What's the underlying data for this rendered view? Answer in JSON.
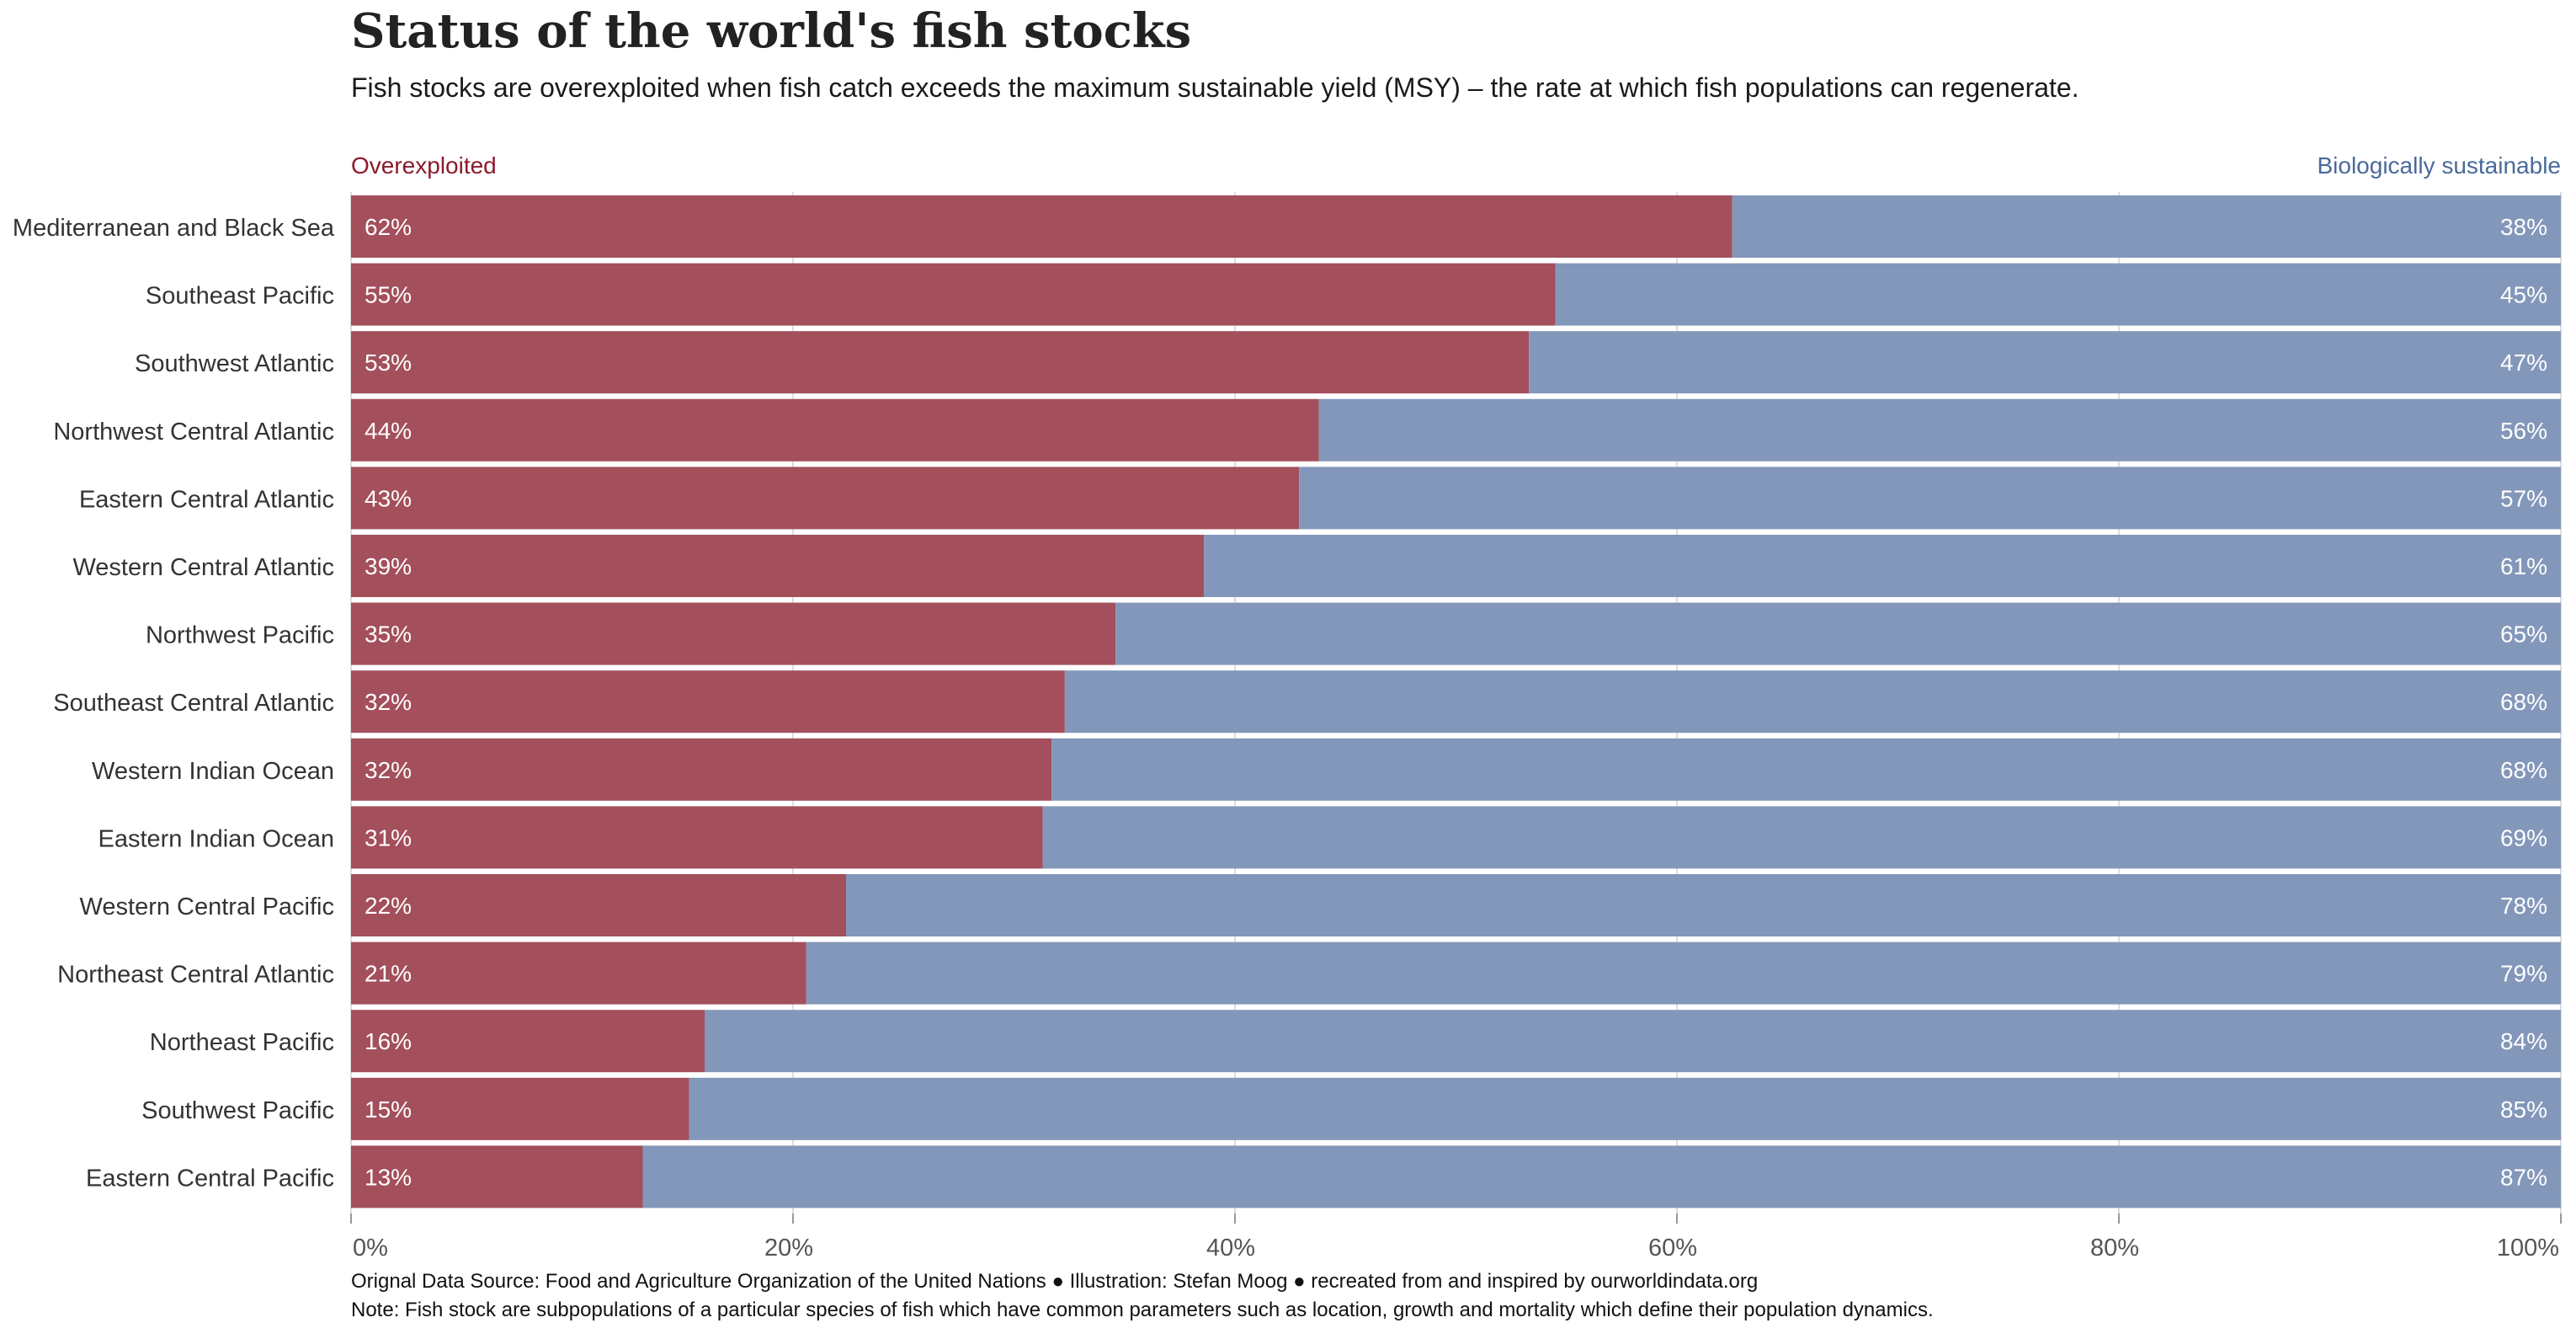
{
  "chart_data": {
    "type": "bar",
    "orientation": "horizontal",
    "stacked": true,
    "title": "Status of the world's fish stocks",
    "subtitle": "Fish stocks are overexploited when fish catch exceeds the maximum sustainable yield (MSY) – the rate at which fish populations can regenerate.",
    "categories": [
      "Mediterranean and Black Sea",
      "Southeast Pacific",
      "Southwest Atlantic",
      "Northwest Central Atlantic",
      "Eastern Central Atlantic",
      "Western Central Atlantic",
      "Northwest Pacific",
      "Southeast Central Atlantic",
      "Western Indian Ocean",
      "Eastern Indian Ocean",
      "Western Central Pacific",
      "Northeast Central Atlantic",
      "Northeast Pacific",
      "Southwest Pacific",
      "Eastern Central Pacific"
    ],
    "series": [
      {
        "name": "Overexploited",
        "color": "#a34f5c",
        "values": [
          62.5,
          54.5,
          53.3,
          43.8,
          42.9,
          38.6,
          34.6,
          32.3,
          31.7,
          31.3,
          22.4,
          20.6,
          16.0,
          15.3,
          13.2
        ],
        "labels": [
          "62%",
          "55%",
          "53%",
          "44%",
          "43%",
          "39%",
          "35%",
          "32%",
          "32%",
          "31%",
          "22%",
          "21%",
          "16%",
          "15%",
          "13%"
        ]
      },
      {
        "name": "Biologically sustainable",
        "color": "#8397ba",
        "values": [
          37.5,
          45.5,
          46.7,
          56.2,
          57.1,
          61.4,
          65.4,
          67.7,
          68.3,
          68.7,
          77.6,
          79.4,
          84.0,
          84.7,
          86.8
        ],
        "labels": [
          "38%",
          "45%",
          "47%",
          "56%",
          "57%",
          "61%",
          "65%",
          "68%",
          "68%",
          "69%",
          "78%",
          "79%",
          "84%",
          "85%",
          "87%"
        ]
      }
    ],
    "legend": {
      "left_label": "Overexploited",
      "left_color": "#8b1a2b",
      "right_label": "Biologically sustainable",
      "right_color": "#4a6a9a",
      "placement": "top"
    },
    "xlim": [
      0,
      100
    ],
    "xticks": [
      0,
      20,
      40,
      60,
      80,
      100
    ],
    "xtick_labels": [
      "0%",
      "20%",
      "40%",
      "60%",
      "80%",
      "100%"
    ],
    "grid": true
  },
  "footer": {
    "source": "Orignal Data Source: Food and Agriculture Organization of the United Nations ● Illustration:  Stefan Moog ● recreated from and inspired by ourworldindata.org",
    "note": "Note: Fish stock are subpopulations of a particular species of fish which have common parameters such as location, growth and mortality which define their population dynamics."
  }
}
